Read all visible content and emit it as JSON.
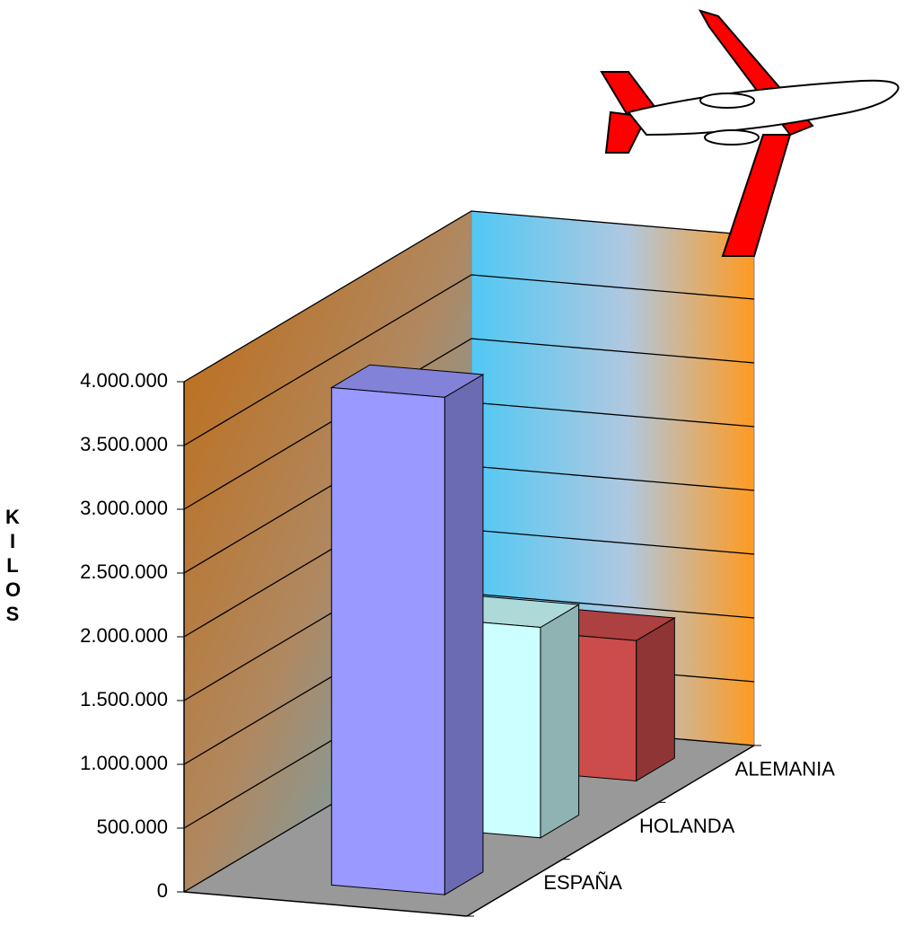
{
  "chart_data": {
    "type": "bar3d",
    "y_label": "KILOS",
    "categories": [
      "ESPAÑA",
      "HOLANDA",
      "ALEMANIA"
    ],
    "values": [
      3900000,
      1650000,
      1100000
    ],
    "colors": [
      "#9999ff",
      "#ccffff",
      "#cc4b4b"
    ],
    "ylim": [
      0,
      4000000
    ],
    "yticks": [
      0,
      {
        "value": 500000,
        "label": "500.000"
      },
      {
        "value": 1000000,
        "label": "1.000.000"
      },
      {
        "value": 1500000,
        "label": "1.500.000"
      },
      {
        "value": 2000000,
        "label": "2.000.000"
      },
      {
        "value": 2500000,
        "label": "2.500.000"
      },
      {
        "value": 3000000,
        "label": "3.000.000"
      },
      {
        "value": 3500000,
        "label": "3.500.000"
      },
      {
        "value": 4000000,
        "label": "4.000.000"
      }
    ],
    "grid": true
  }
}
